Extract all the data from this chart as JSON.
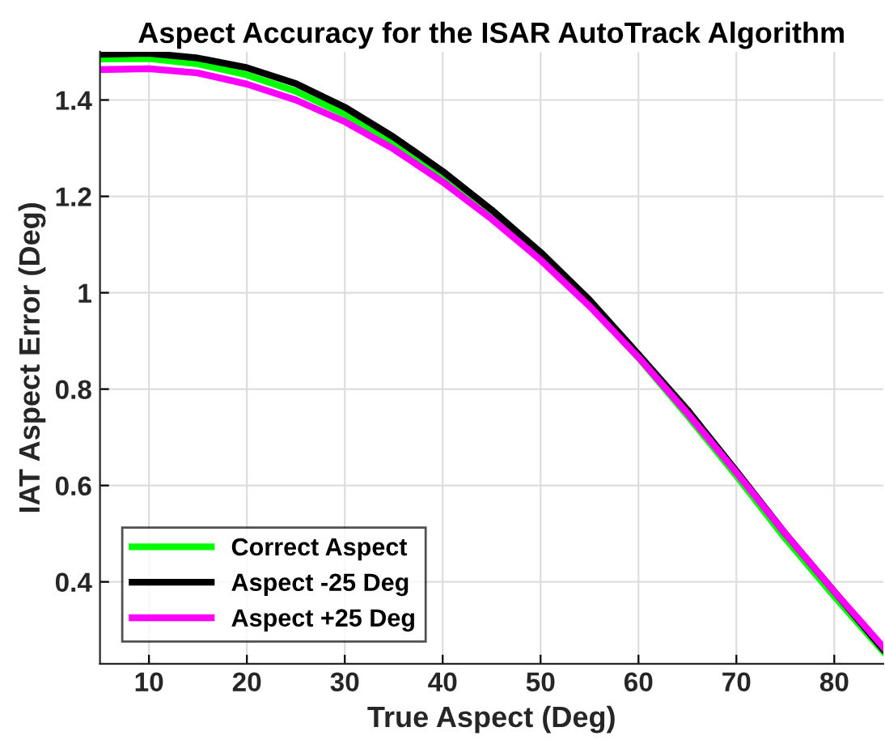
{
  "chart_data": {
    "type": "line",
    "title": "Aspect Accuracy for the ISAR AutoTrack Algorithm",
    "xlabel": "True Aspect (Deg)",
    "ylabel": "IAT Aspect Error (Deg)",
    "x": [
      5,
      10,
      15,
      20,
      25,
      30,
      35,
      40,
      45,
      50,
      55,
      60,
      65,
      70,
      75,
      80,
      85
    ],
    "series": [
      {
        "name": "Correct Aspect",
        "color": "#00ff00",
        "values": [
          1.485,
          1.486,
          1.475,
          1.452,
          1.418,
          1.37,
          1.31,
          1.242,
          1.163,
          1.075,
          0.975,
          0.865,
          0.745,
          0.62,
          0.49,
          0.37,
          0.255
        ]
      },
      {
        "name": "Aspect -25 Deg",
        "color": "#000000",
        "values": [
          1.495,
          1.497,
          1.487,
          1.467,
          1.434,
          1.385,
          1.323,
          1.252,
          1.172,
          1.084,
          0.985,
          0.872,
          0.757,
          0.63,
          0.5,
          0.38,
          0.26
        ]
      },
      {
        "name": "Aspect +25 Deg",
        "color": "#ff00ff",
        "values": [
          1.463,
          1.465,
          1.456,
          1.433,
          1.4,
          1.355,
          1.298,
          1.23,
          1.153,
          1.068,
          0.972,
          0.866,
          0.75,
          0.627,
          0.5,
          0.38,
          0.265
        ]
      }
    ],
    "xlim": [
      5,
      85
    ],
    "xticks": [
      10,
      20,
      30,
      40,
      50,
      60,
      70,
      80
    ],
    "ylim": [
      0.23,
      1.5
    ],
    "yticks": [
      0.4,
      0.6,
      0.8,
      1,
      1.2,
      1.4
    ],
    "grid": true,
    "legend": "bottom left",
    "line_style": "solid",
    "marker": "none"
  }
}
